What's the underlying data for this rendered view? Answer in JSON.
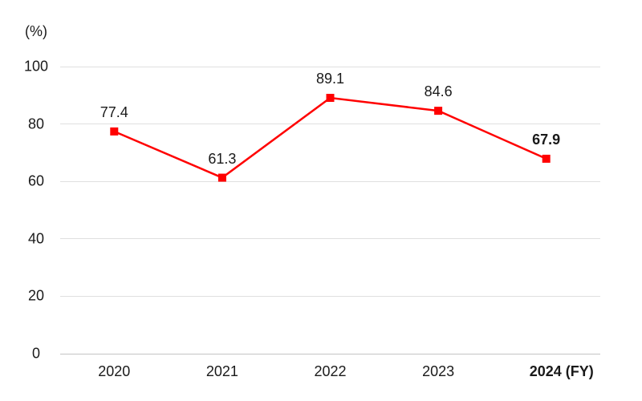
{
  "chart_data": {
    "type": "line",
    "title": "",
    "unit_label": "(%)",
    "categories": [
      "2020",
      "2021",
      "2022",
      "2023",
      "2024"
    ],
    "x_tick_labels": [
      "2020",
      "2021",
      "2022",
      "2023",
      "2024 (FY)"
    ],
    "values": [
      77.4,
      61.3,
      89.1,
      84.6,
      67.9
    ],
    "data_labels": [
      "77.4",
      "61.3",
      "89.1",
      "84.6",
      "67.9"
    ],
    "emphasized_index": 4,
    "yticks": [
      "0",
      "20",
      "40",
      "60",
      "80",
      "100"
    ],
    "ylim": [
      0,
      100
    ],
    "xlabel": "",
    "ylabel": "(%)",
    "grid": true,
    "legend_position": "none",
    "marker_shape": "square",
    "line_color": "#ff0000",
    "gridline_color": "#e0e0e0",
    "axis_line_color": "#c4c4c4",
    "text_color": "#1a1a1a"
  }
}
